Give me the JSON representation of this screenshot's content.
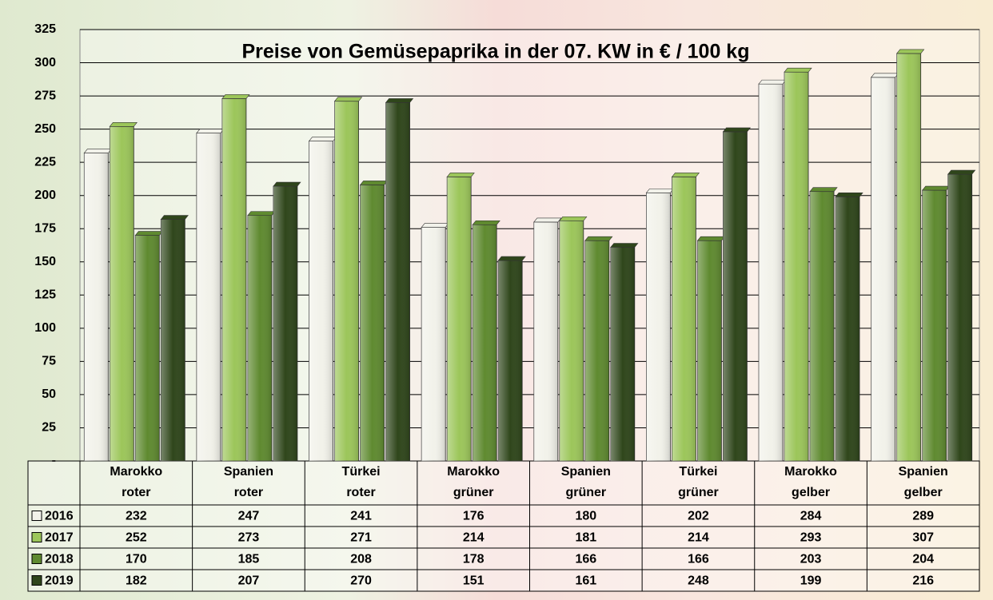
{
  "chart_data": {
    "type": "bar",
    "title": "Preise von Gemüsepaprika in der 07. KW in € / 100 kg",
    "categories": [
      [
        "Marokko",
        "roter"
      ],
      [
        "Spanien",
        "roter"
      ],
      [
        "Türkei",
        "roter"
      ],
      [
        "Marokko",
        "grüner"
      ],
      [
        "Spanien",
        "grüner"
      ],
      [
        "Türkei",
        "grüner"
      ],
      [
        "Marokko",
        "gelber"
      ],
      [
        "Spanien",
        "gelber"
      ]
    ],
    "series": [
      {
        "name": "2016",
        "color": "#f2f2ea",
        "values": [
          232,
          247,
          241,
          176,
          180,
          202,
          284,
          289
        ]
      },
      {
        "name": "2017",
        "color": "#9cc65a",
        "values": [
          252,
          273,
          271,
          214,
          181,
          214,
          293,
          307
        ]
      },
      {
        "name": "2018",
        "color": "#5f8a30",
        "values": [
          170,
          185,
          208,
          178,
          166,
          166,
          203,
          204
        ]
      },
      {
        "name": "2019",
        "color": "#2f461b",
        "values": [
          182,
          207,
          270,
          151,
          161,
          248,
          199,
          216
        ]
      }
    ],
    "ylim": [
      0,
      325
    ],
    "yticks": [
      {
        "value": 0,
        "label": "-"
      },
      25,
      50,
      75,
      100,
      125,
      150,
      175,
      200,
      225,
      250,
      275,
      300,
      325
    ],
    "grid": true
  }
}
